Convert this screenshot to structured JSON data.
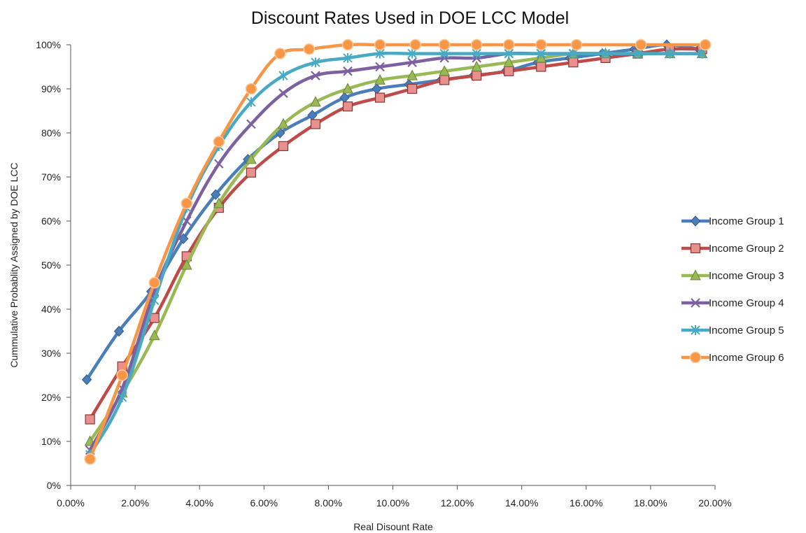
{
  "chart_data": {
    "type": "line",
    "title": "Discount Rates Used in DOE LCC Model",
    "xlabel": "Real Disount Rate",
    "ylabel": "Cummulative Probablity Assigned by DOE LCC",
    "xlim": [
      0,
      20
    ],
    "ylim": [
      0,
      100
    ],
    "x_ticks": [
      "0.00%",
      "2.00%",
      "4.00%",
      "6.00%",
      "8.00%",
      "10.00%",
      "12.00%",
      "14.00%",
      "16.00%",
      "18.00%",
      "20.00%"
    ],
    "y_ticks": [
      "0%",
      "10%",
      "20%",
      "30%",
      "40%",
      "50%",
      "60%",
      "70%",
      "80%",
      "90%",
      "100%"
    ],
    "grid": false,
    "legend_position": "right",
    "series": [
      {
        "name": "Income Group 1",
        "color": "#4a7ebb",
        "marker": "diamond",
        "points": [
          [
            0.5,
            24
          ],
          [
            1.5,
            35
          ],
          [
            2.5,
            44
          ],
          [
            3.5,
            56
          ],
          [
            4.5,
            66
          ],
          [
            5.5,
            74
          ],
          [
            6.5,
            80
          ],
          [
            7.5,
            84
          ],
          [
            8.5,
            88
          ],
          [
            9.5,
            90
          ],
          [
            10.5,
            91
          ],
          [
            11.5,
            92
          ],
          [
            12.5,
            93
          ],
          [
            13.5,
            94
          ],
          [
            14.5,
            96
          ],
          [
            15.5,
            97
          ],
          [
            16.5,
            98
          ],
          [
            17.5,
            99
          ],
          [
            18.5,
            100
          ],
          [
            19.5,
            99
          ]
        ]
      },
      {
        "name": "Income Group 2",
        "color": "#be4b48",
        "marker": "square",
        "points": [
          [
            0.6,
            15
          ],
          [
            1.6,
            27
          ],
          [
            2.6,
            38
          ],
          [
            3.6,
            52
          ],
          [
            4.6,
            63
          ],
          [
            5.6,
            71
          ],
          [
            6.6,
            77
          ],
          [
            7.6,
            82
          ],
          [
            8.6,
            86
          ],
          [
            9.6,
            88
          ],
          [
            10.6,
            90
          ],
          [
            11.6,
            92
          ],
          [
            12.6,
            93
          ],
          [
            13.6,
            94
          ],
          [
            14.6,
            95
          ],
          [
            15.6,
            96
          ],
          [
            16.6,
            97
          ],
          [
            17.6,
            98
          ],
          [
            18.6,
            99
          ],
          [
            19.6,
            99
          ]
        ]
      },
      {
        "name": "Income Group 3",
        "color": "#98b954",
        "marker": "triangle",
        "points": [
          [
            0.6,
            10
          ],
          [
            1.6,
            21
          ],
          [
            2.6,
            34
          ],
          [
            3.6,
            50
          ],
          [
            4.6,
            64
          ],
          [
            5.6,
            74
          ],
          [
            6.6,
            82
          ],
          [
            7.6,
            87
          ],
          [
            8.6,
            90
          ],
          [
            9.6,
            92
          ],
          [
            10.6,
            93
          ],
          [
            11.6,
            94
          ],
          [
            12.6,
            95
          ],
          [
            13.6,
            96
          ],
          [
            14.6,
            97
          ],
          [
            15.6,
            98
          ],
          [
            16.6,
            98
          ],
          [
            17.6,
            98
          ],
          [
            18.6,
            98
          ],
          [
            19.6,
            98
          ]
        ]
      },
      {
        "name": "Income Group 4",
        "color": "#7d60a0",
        "marker": "x",
        "points": [
          [
            0.6,
            8
          ],
          [
            1.6,
            22
          ],
          [
            2.6,
            44
          ],
          [
            3.6,
            60
          ],
          [
            4.6,
            73
          ],
          [
            5.6,
            82
          ],
          [
            6.6,
            89
          ],
          [
            7.6,
            93
          ],
          [
            8.6,
            94
          ],
          [
            9.6,
            95
          ],
          [
            10.6,
            96
          ],
          [
            11.6,
            97
          ],
          [
            12.6,
            97
          ],
          [
            13.6,
            98
          ],
          [
            14.6,
            98
          ],
          [
            15.6,
            98
          ],
          [
            16.6,
            98
          ],
          [
            17.6,
            98
          ],
          [
            18.6,
            98
          ],
          [
            19.6,
            98
          ]
        ]
      },
      {
        "name": "Income Group 5",
        "color": "#46aac5",
        "marker": "star",
        "points": [
          [
            0.6,
            7
          ],
          [
            1.6,
            20
          ],
          [
            2.6,
            42
          ],
          [
            3.6,
            63
          ],
          [
            4.6,
            77
          ],
          [
            5.6,
            87
          ],
          [
            6.6,
            93
          ],
          [
            7.6,
            96
          ],
          [
            8.6,
            97
          ],
          [
            9.6,
            98
          ],
          [
            10.6,
            98
          ],
          [
            11.6,
            98
          ],
          [
            12.6,
            98
          ],
          [
            13.6,
            98
          ],
          [
            14.6,
            98
          ],
          [
            15.6,
            98
          ],
          [
            16.6,
            98
          ],
          [
            17.6,
            98
          ],
          [
            18.6,
            98
          ],
          [
            19.6,
            98
          ]
        ]
      },
      {
        "name": "Income Group 6",
        "color": "#f79646",
        "marker": "circle",
        "points": [
          [
            0.6,
            6
          ],
          [
            1.6,
            25
          ],
          [
            2.6,
            46
          ],
          [
            3.6,
            64
          ],
          [
            4.6,
            78
          ],
          [
            5.6,
            90
          ],
          [
            6.5,
            98
          ],
          [
            7.4,
            99
          ],
          [
            8.6,
            100
          ],
          [
            9.6,
            100
          ],
          [
            10.7,
            100
          ],
          [
            11.6,
            100
          ],
          [
            12.6,
            100
          ],
          [
            13.6,
            100
          ],
          [
            14.6,
            100
          ],
          [
            15.7,
            100
          ],
          [
            17.7,
            100
          ],
          [
            19.7,
            100
          ]
        ]
      }
    ]
  }
}
